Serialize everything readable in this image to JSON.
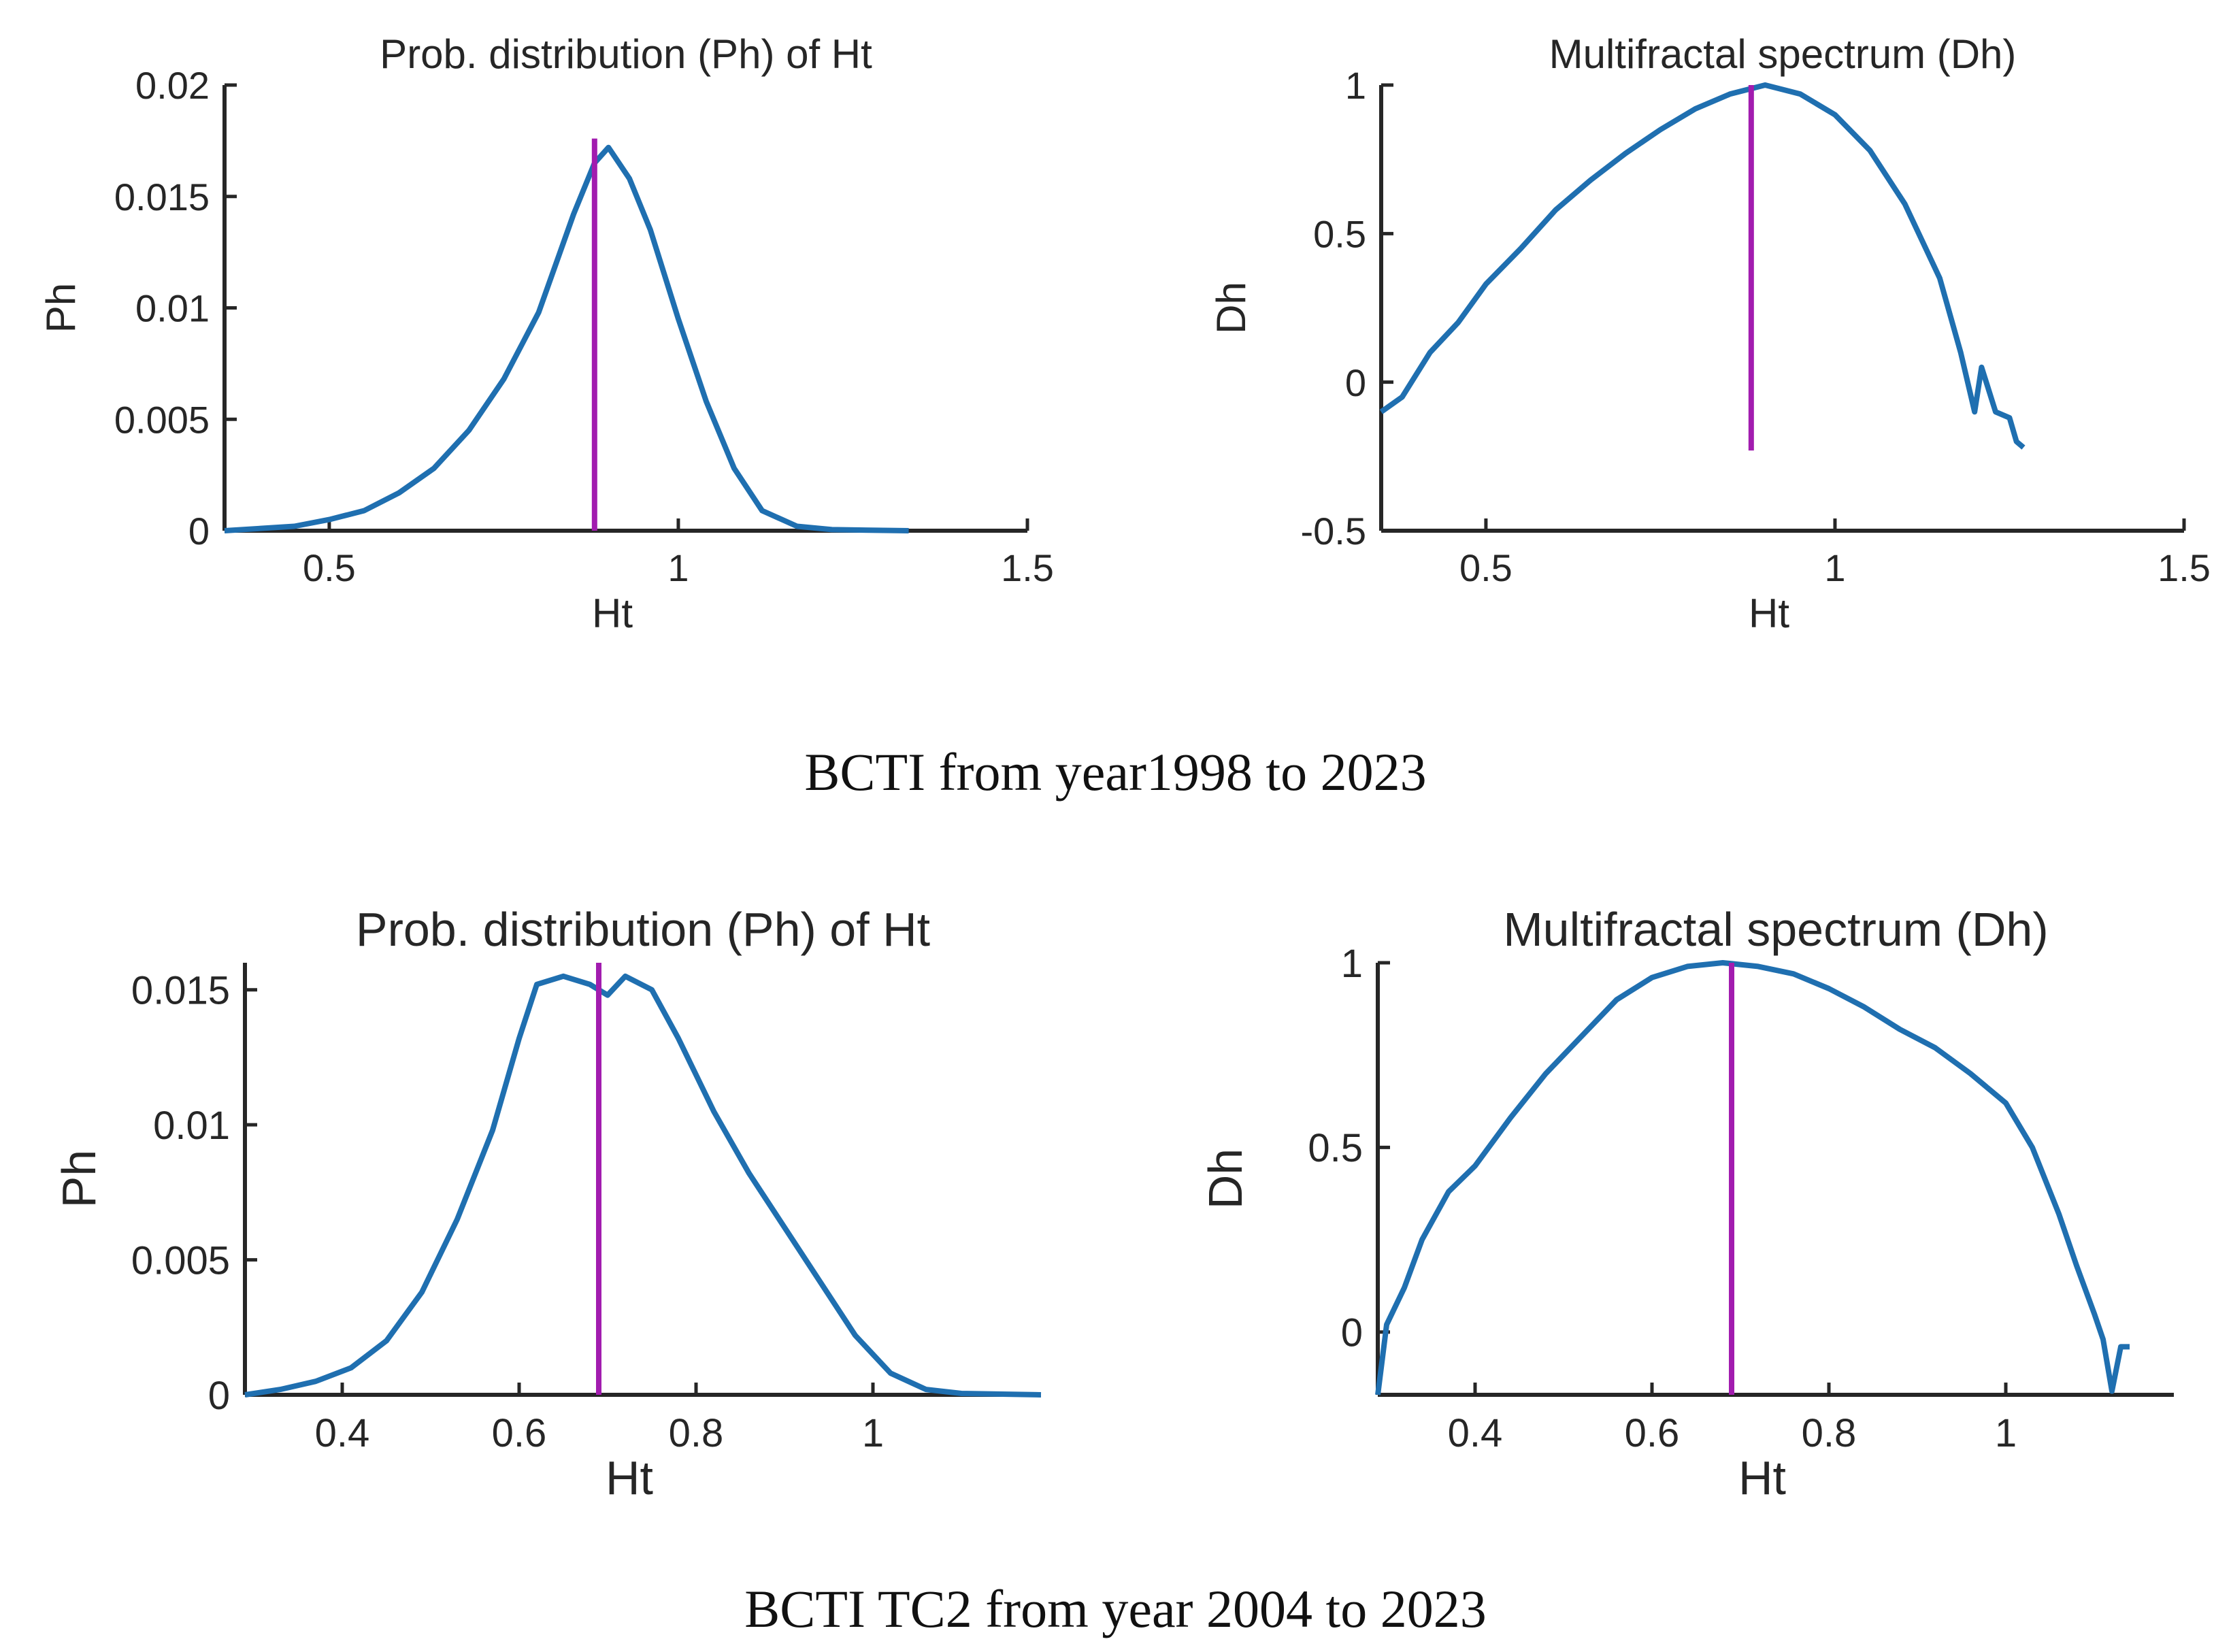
{
  "colors": {
    "curve": "#1f6fb0",
    "marker": "#a21caf",
    "axis": "#262626"
  },
  "captions": {
    "top": "BCTI from year1998 to 2023",
    "bottom": "BCTI TC2 from year 2004 to 2023"
  },
  "chart_data": [
    {
      "id": "p1",
      "type": "line",
      "title": "Prob. distribution (Ph) of Ht",
      "xlabel": "Ht",
      "ylabel": "Ph",
      "xlim": [
        0.35,
        1.5
      ],
      "ylim": [
        0,
        0.02
      ],
      "xticks": [
        0.5,
        1,
        1.5
      ],
      "xtick_labels": [
        "0.5",
        "1",
        "1.5"
      ],
      "yticks": [
        0,
        0.005,
        0.01,
        0.015,
        0.02
      ],
      "ytick_labels": [
        "0",
        "0.005",
        "0.01",
        "0.015",
        "0.02"
      ],
      "marker_x": 0.88,
      "marker_y": [
        0,
        0.0176
      ],
      "series": [
        {
          "name": "Ph",
          "x": [
            0.35,
            0.45,
            0.5,
            0.55,
            0.6,
            0.65,
            0.7,
            0.75,
            0.8,
            0.85,
            0.88,
            0.9,
            0.93,
            0.96,
            1.0,
            1.04,
            1.08,
            1.12,
            1.17,
            1.22,
            1.33
          ],
          "y": [
            0,
            0.0002,
            0.0005,
            0.0009,
            0.0017,
            0.0028,
            0.0045,
            0.0068,
            0.0098,
            0.0142,
            0.0165,
            0.0172,
            0.0158,
            0.0135,
            0.0095,
            0.0058,
            0.0028,
            0.0009,
            0.0002,
            5e-05,
            0
          ]
        }
      ]
    },
    {
      "id": "p2",
      "type": "line",
      "title": "Multifractal spectrum (Dh)",
      "xlabel": "Ht",
      "ylabel": "Dh",
      "xlim": [
        0.35,
        1.5
      ],
      "ylim": [
        -0.5,
        1
      ],
      "xticks": [
        0.5,
        1,
        1.5
      ],
      "xtick_labels": [
        "0.5",
        "1",
        "1.5"
      ],
      "yticks": [
        -0.5,
        0,
        0.5,
        1
      ],
      "ytick_labels": [
        "-0.5",
        "0",
        "0.5",
        "1"
      ],
      "marker_x": 0.88,
      "marker_y": [
        -0.23,
        1
      ],
      "series": [
        {
          "name": "Dh",
          "x": [
            0.35,
            0.38,
            0.42,
            0.46,
            0.5,
            0.55,
            0.6,
            0.65,
            0.7,
            0.75,
            0.8,
            0.85,
            0.9,
            0.95,
            1.0,
            1.05,
            1.1,
            1.15,
            1.18,
            1.2,
            1.21,
            1.23,
            1.25,
            1.26,
            1.27
          ],
          "y": [
            -0.1,
            -0.05,
            0.1,
            0.2,
            0.33,
            0.45,
            0.58,
            0.68,
            0.77,
            0.85,
            0.92,
            0.97,
            1.0,
            0.97,
            0.9,
            0.78,
            0.6,
            0.35,
            0.1,
            -0.1,
            0.05,
            -0.1,
            -0.12,
            -0.2,
            -0.22
          ]
        }
      ]
    },
    {
      "id": "p3",
      "type": "line",
      "title": "Prob. distribution (Ph) of Ht",
      "xlabel": "Ht",
      "ylabel": "Ph",
      "xlim": [
        0.29,
        1.19
      ],
      "ylim": [
        0,
        0.016
      ],
      "xticks": [
        0.4,
        0.6,
        0.8,
        1
      ],
      "xtick_labels": [
        "0.4",
        "0.6",
        "0.8",
        "1"
      ],
      "yticks": [
        0,
        0.005,
        0.01,
        0.015
      ],
      "ytick_labels": [
        "0",
        "0.005",
        "0.01",
        "0.015"
      ],
      "marker_x": 0.69,
      "marker_y": [
        0,
        0.016
      ],
      "series": [
        {
          "name": "Ph",
          "x": [
            0.29,
            0.33,
            0.37,
            0.41,
            0.45,
            0.49,
            0.53,
            0.57,
            0.6,
            0.62,
            0.65,
            0.68,
            0.7,
            0.72,
            0.75,
            0.78,
            0.82,
            0.86,
            0.9,
            0.94,
            0.98,
            1.02,
            1.06,
            1.1,
            1.19
          ],
          "y": [
            0,
            0.0002,
            0.0005,
            0.001,
            0.002,
            0.0038,
            0.0065,
            0.0098,
            0.0132,
            0.0152,
            0.0155,
            0.0152,
            0.0148,
            0.0155,
            0.015,
            0.0132,
            0.0105,
            0.0082,
            0.0062,
            0.0042,
            0.0022,
            0.0008,
            0.0002,
            5e-05,
            0
          ]
        }
      ]
    },
    {
      "id": "p4",
      "type": "line",
      "title": "Multifractal spectrum (Dh)",
      "xlabel": "Ht",
      "ylabel": "Dh",
      "xlim": [
        0.29,
        1.19
      ],
      "ylim": [
        -0.17,
        1
      ],
      "xticks": [
        0.4,
        0.6,
        0.8,
        1
      ],
      "xtick_labels": [
        "0.4",
        "0.6",
        "0.8",
        "1"
      ],
      "yticks": [
        0,
        0.5,
        1
      ],
      "ytick_labels": [
        "0",
        "0.5",
        "1"
      ],
      "marker_x": 0.69,
      "marker_y": [
        -0.17,
        1
      ],
      "series": [
        {
          "name": "Dh",
          "x": [
            0.29,
            0.3,
            0.32,
            0.34,
            0.37,
            0.4,
            0.44,
            0.48,
            0.52,
            0.56,
            0.6,
            0.64,
            0.68,
            0.72,
            0.76,
            0.8,
            0.84,
            0.88,
            0.92,
            0.96,
            1.0,
            1.03,
            1.06,
            1.08,
            1.1,
            1.11,
            1.12,
            1.13,
            1.14
          ],
          "y": [
            -0.17,
            0.02,
            0.12,
            0.25,
            0.38,
            0.45,
            0.58,
            0.7,
            0.8,
            0.9,
            0.96,
            0.99,
            1.0,
            0.99,
            0.97,
            0.93,
            0.88,
            0.82,
            0.77,
            0.7,
            0.62,
            0.5,
            0.32,
            0.18,
            0.05,
            -0.02,
            -0.16,
            -0.04,
            -0.04
          ]
        }
      ]
    }
  ]
}
